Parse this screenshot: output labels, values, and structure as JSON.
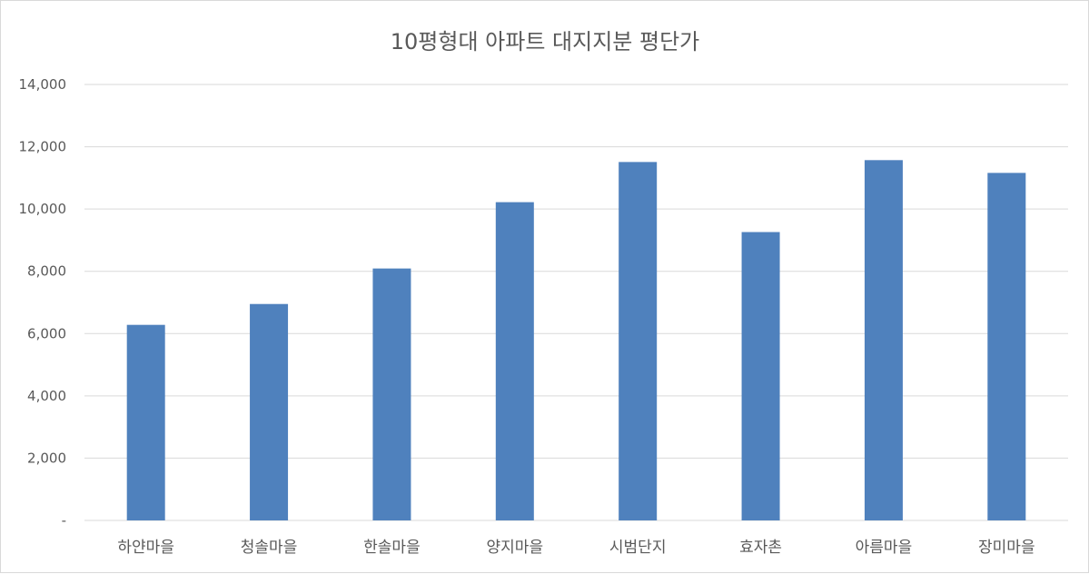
{
  "chart_data": {
    "type": "bar",
    "title": "10평형대 아파트 대지지분 평단가",
    "xlabel": "",
    "ylabel": "",
    "categories": [
      "하얀마을",
      "청솔마을",
      "한솔마을",
      "양지마을",
      "시범단지",
      "효자촌",
      "아름마을",
      "장미마을"
    ],
    "values": [
      6280,
      6950,
      8090,
      10220,
      11510,
      9260,
      11570,
      11160
    ],
    "ylim": [
      0,
      14000
    ],
    "yticks": [
      0,
      2000,
      4000,
      6000,
      8000,
      10000,
      12000,
      14000
    ],
    "ytick_labels": [
      "-",
      "2,000",
      "4,000",
      "6,000",
      "8,000",
      "10,000",
      "12,000",
      "14,000"
    ],
    "grid": true,
    "legend": "none",
    "bar_color": "#4f81bd",
    "grid_color": "#d9d9d9"
  }
}
